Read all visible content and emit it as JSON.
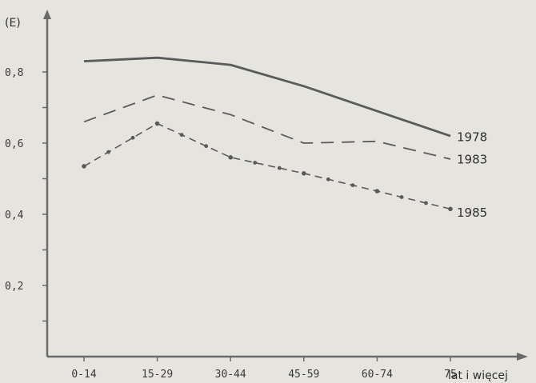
{
  "chart_data": {
    "type": "line",
    "title": "",
    "ylabel": "(E)",
    "xlabel": "lat i więcej",
    "categories": [
      "0-14",
      "15-29",
      "30-44",
      "45-59",
      "60-74",
      "75"
    ],
    "ylim": [
      0,
      0.9
    ],
    "yticks": [
      0.2,
      0.4,
      0.6,
      0.8
    ],
    "ytick_labels": [
      "0,2",
      "0,4",
      "0,6",
      "0,8"
    ],
    "grid": false,
    "series": [
      {
        "name": "1978",
        "style": "solid",
        "values": [
          0.83,
          0.84,
          0.82,
          0.76,
          0.69,
          0.62
        ]
      },
      {
        "name": "1983",
        "style": "dashed",
        "values": [
          0.66,
          0.735,
          0.68,
          0.6,
          0.605,
          0.555
        ]
      },
      {
        "name": "1985",
        "style": "dash-dot",
        "values": [
          0.535,
          0.655,
          0.56,
          0.515,
          0.465,
          0.415
        ]
      }
    ],
    "colors": {
      "line": "#5a5a5a",
      "axis": "#6a6a6a",
      "background": "#e6e4df"
    }
  }
}
